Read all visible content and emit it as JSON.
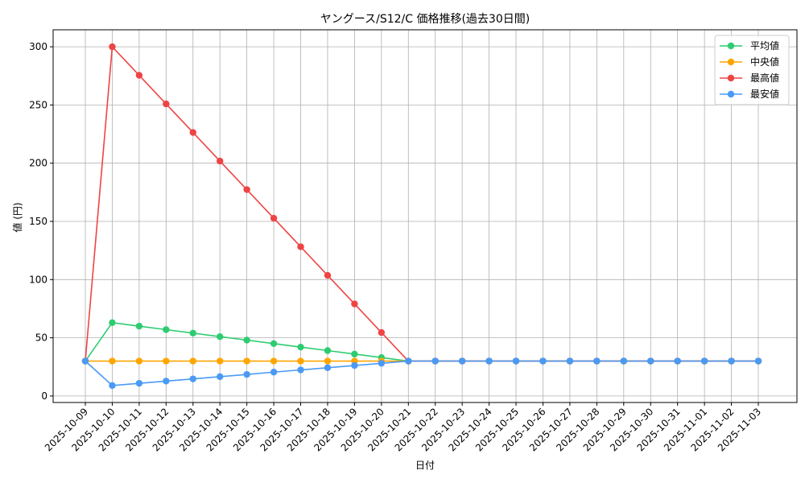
{
  "chart_data": {
    "type": "line",
    "title": "ヤングース/S12/C 価格推移(過去30日間)",
    "x_label": "日付",
    "y_label": "値 (円)",
    "categories": [
      "2025-10-09",
      "2025-10-10",
      "2025-10-11",
      "2025-10-12",
      "2025-10-13",
      "2025-10-14",
      "2025-10-15",
      "2025-10-16",
      "2025-10-17",
      "2025-10-18",
      "2025-10-19",
      "2025-10-20",
      "2025-10-21",
      "2025-10-22",
      "2025-10-23",
      "2025-10-24",
      "2025-10-25",
      "2025-10-26",
      "2025-10-27",
      "2025-10-28",
      "2025-10-29",
      "2025-10-30",
      "2025-10-31",
      "2025-11-01",
      "2025-11-02",
      "2025-11-03"
    ],
    "series": [
      {
        "name": "平均値",
        "color": "#2ecc71",
        "values": [
          30,
          63,
          60,
          57,
          54,
          51,
          48,
          45,
          42,
          39,
          36,
          33,
          30,
          30,
          30,
          30,
          30,
          30,
          30,
          30,
          30,
          30,
          30,
          30,
          30,
          30
        ]
      },
      {
        "name": "中央値",
        "color": "#ffa500",
        "values": [
          30,
          30,
          30,
          30,
          30,
          30,
          30,
          30,
          30,
          30,
          30,
          30,
          30,
          30,
          30,
          30,
          30,
          30,
          30,
          30,
          30,
          30,
          30,
          30,
          30,
          30
        ]
      },
      {
        "name": "最高値",
        "color": "#ef4444",
        "values": [
          30,
          300,
          275.5,
          250.9,
          226.4,
          201.8,
          177.3,
          152.7,
          128.2,
          103.6,
          79.1,
          54.5,
          30,
          30,
          30,
          30,
          30,
          30,
          30,
          30,
          30,
          30,
          30,
          30,
          30,
          30
        ]
      },
      {
        "name": "最安値",
        "color": "#4a9af5",
        "values": [
          30,
          9,
          10.9,
          12.8,
          14.7,
          16.6,
          18.5,
          20.5,
          22.4,
          24.3,
          26.2,
          28.1,
          30,
          30,
          30,
          30,
          30,
          30,
          30,
          30,
          30,
          30,
          30,
          30,
          30,
          30
        ]
      }
    ],
    "ylim": [
      -5.6,
      314.6
    ],
    "yticks": [
      0,
      50,
      100,
      150,
      200,
      250,
      300
    ],
    "grid": true,
    "legend": "upper right"
  }
}
